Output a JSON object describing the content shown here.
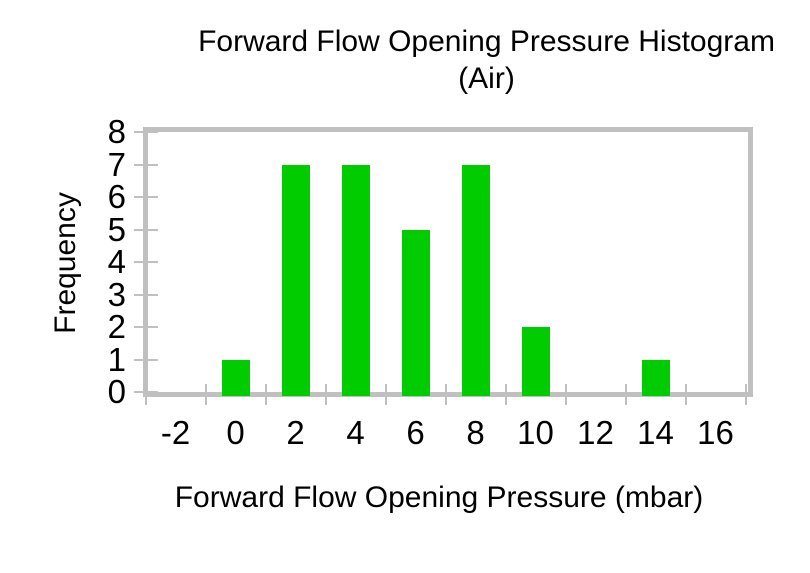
{
  "chart_data": {
    "type": "bar",
    "variant": "histogram",
    "title": "Forward Flow Opening Pressure Histogram (Air)",
    "title_lines": [
      "Forward Flow Opening Pressure Histogram",
      "(Air)"
    ],
    "xlabel": "Forward Flow Opening Pressure (mbar)",
    "ylabel": "Frequency",
    "categories": [
      -2,
      0,
      2,
      4,
      6,
      8,
      10,
      12,
      14,
      16
    ],
    "values": [
      0,
      1,
      7,
      7,
      5,
      7,
      2,
      0,
      1,
      0
    ],
    "x_tick_labels": [
      "-2",
      "0",
      "2",
      "4",
      "6",
      "8",
      "10",
      "12",
      "14",
      "16"
    ],
    "y_tick_labels": [
      "0",
      "1",
      "2",
      "3",
      "4",
      "5",
      "6",
      "7",
      "8"
    ],
    "y_ticks": [
      0,
      1,
      2,
      3,
      4,
      5,
      6,
      7,
      8
    ],
    "ylim": [
      0,
      8
    ],
    "grid": false,
    "legend": false,
    "bar_color": "#00CC00",
    "axis_color": "#C0C0C0",
    "text_color": "#000000",
    "background_color": "#FFFFFF"
  }
}
